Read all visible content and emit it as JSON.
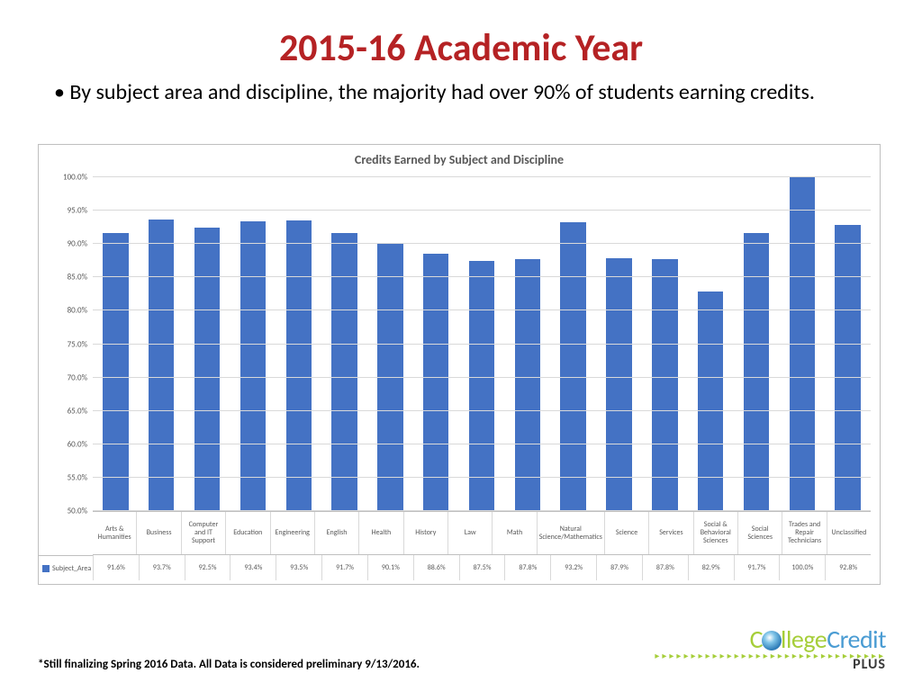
{
  "title": "2015-16 Academic Year",
  "bullet_text": "By subject area and discipline, the majority had over 90% of students earning credits.",
  "chart": {
    "type": "bar",
    "title": "Credits Earned by Subject and Discipline",
    "series_name": "Subject_Area",
    "bar_color": "#4472c4",
    "background_color": "#ffffff",
    "grid_color": "#d9d9d9",
    "border_color": "#bfbfbf",
    "title_fontsize": 14,
    "axis_fontsize": 9,
    "ylim": [
      50,
      100
    ],
    "ytick_step": 5,
    "ytick_format": "pct1",
    "categories": [
      "Arts & Humanities",
      "Business",
      "Computer and IT Support",
      "Education",
      "Engineering",
      "English",
      "Health",
      "History",
      "Law",
      "Math",
      "Natural Science/Mathematics",
      "Science",
      "Services",
      "Social & Behavioral Sciences",
      "Social Sciences",
      "Trades and Repair Technicians",
      "Unclassified"
    ],
    "values": [
      91.6,
      93.7,
      92.5,
      93.4,
      93.5,
      91.7,
      90.1,
      88.6,
      87.5,
      87.8,
      93.2,
      87.9,
      87.8,
      82.9,
      91.7,
      100.0,
      92.8
    ],
    "value_format": "pct1"
  },
  "footnote": "*Still finalizing Spring 2016 Data. All Data is considered preliminary 9/13/2016.",
  "logo": {
    "part1": "C",
    "part2": "llege",
    "part3": "Credit",
    "sub": "PLUS",
    "color_green": "#a6ce39",
    "color_blue": "#4a9cd3",
    "color_dark": "#3a3a3a"
  }
}
